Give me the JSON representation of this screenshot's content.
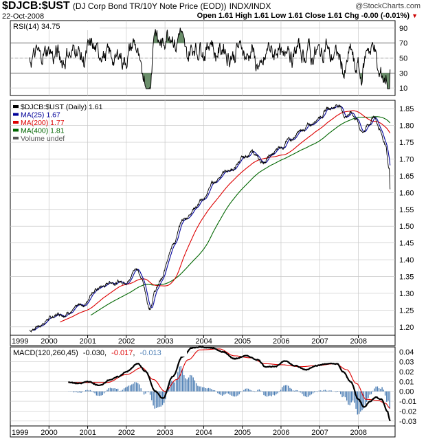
{
  "header": {
    "symbol": "$DJCB:$UST",
    "description": "(DJ Corp Bond TR/10Y Note Price (EOD))",
    "exchange": "INDX/INDX",
    "date": "22-Oct-2008",
    "watermark": "@StockCharts.com",
    "quote": "Open 1.61  High 1.61  Low 1.61  Close 1.61  Chg -0.00 (-0.01%)",
    "down_marker": "▼"
  },
  "colors": {
    "price": "#000000",
    "ma25": "#000099",
    "ma200": "#dd0000",
    "ma400": "#006600",
    "macd": "#000000",
    "signal": "#dd0000",
    "histogram": "#4b7db4",
    "rsi_fill": "#6b8f6b",
    "grid": "#c8c8c8"
  },
  "chart_data": [
    {
      "type": "line",
      "panel": "rsi",
      "legend": "RSI(14) 34.75",
      "y_ticks": [
        "90",
        "70",
        "50",
        "30",
        "10"
      ],
      "ylim": [
        0,
        100
      ],
      "overbought": 70,
      "oversold": 30,
      "series": [
        {
          "name": "RSI(14)",
          "last": 34.75
        }
      ]
    },
    {
      "type": "line",
      "panel": "price",
      "legend": [
        {
          "text": "$DJCB:$UST (Daily) 1.61",
          "color": "#000000"
        },
        {
          "text": "MA(25) 1.67",
          "color": "#000099"
        },
        {
          "text": "MA(200) 1.77",
          "color": "#dd0000"
        },
        {
          "text": "MA(400) 1.81",
          "color": "#006600"
        },
        {
          "text": "Volume undef",
          "color": "#555555"
        }
      ],
      "y_ticks": [
        "1.85",
        "1.80",
        "1.75",
        "1.70",
        "1.65",
        "1.60",
        "1.55",
        "1.50",
        "1.45",
        "1.40",
        "1.35",
        "1.30",
        "1.25",
        "1.20"
      ],
      "ylim": [
        1.175,
        1.875
      ],
      "x_ticks": [
        "1999",
        "2000",
        "2001",
        "2002",
        "2003",
        "2004",
        "2005",
        "2006",
        "2007",
        "2008"
      ],
      "price_keypoints": [
        [
          1999.5,
          1.19
        ],
        [
          1999.75,
          1.205
        ],
        [
          2000.0,
          1.225
        ],
        [
          2000.3,
          1.24
        ],
        [
          2000.6,
          1.25
        ],
        [
          2000.9,
          1.265
        ],
        [
          2001.15,
          1.31
        ],
        [
          2001.4,
          1.32
        ],
        [
          2001.6,
          1.335
        ],
        [
          2001.85,
          1.335
        ],
        [
          2002.05,
          1.34
        ],
        [
          2002.25,
          1.38
        ],
        [
          2002.4,
          1.34
        ],
        [
          2002.6,
          1.26
        ],
        [
          2002.75,
          1.31
        ],
        [
          2002.9,
          1.34
        ],
        [
          2003.2,
          1.45
        ],
        [
          2003.5,
          1.52
        ],
        [
          2003.8,
          1.56
        ],
        [
          2004.0,
          1.58
        ],
        [
          2004.25,
          1.63
        ],
        [
          2004.5,
          1.66
        ],
        [
          2004.75,
          1.67
        ],
        [
          2005.0,
          1.7
        ],
        [
          2005.25,
          1.72
        ],
        [
          2005.5,
          1.69
        ],
        [
          2005.75,
          1.71
        ],
        [
          2006.0,
          1.74
        ],
        [
          2006.25,
          1.76
        ],
        [
          2006.5,
          1.78
        ],
        [
          2006.75,
          1.8
        ],
        [
          2007.0,
          1.83
        ],
        [
          2007.25,
          1.855
        ],
        [
          2007.5,
          1.862
        ],
        [
          2007.65,
          1.83
        ],
        [
          2007.8,
          1.84
        ],
        [
          2007.95,
          1.82
        ],
        [
          2008.1,
          1.78
        ],
        [
          2008.25,
          1.8
        ],
        [
          2008.4,
          1.83
        ],
        [
          2008.55,
          1.79
        ],
        [
          2008.7,
          1.75
        ],
        [
          2008.8,
          1.67
        ],
        [
          2008.82,
          1.61
        ]
      ],
      "series": [
        {
          "name": "$DJCB:$UST (Daily)",
          "last": 1.61
        },
        {
          "name": "MA(25)",
          "last": 1.67
        },
        {
          "name": "MA(200)",
          "last": 1.77
        },
        {
          "name": "MA(400)",
          "last": 1.81
        }
      ]
    },
    {
      "type": "line",
      "panel": "macd",
      "legend": {
        "label": "MACD(120,260,45)",
        "macd": "-0.030",
        "signal": "-0.017",
        "histogram": "-0.013"
      },
      "y_ticks": [
        "0.04",
        "0.03",
        "0.02",
        "0.01",
        "0.00",
        "-0.01",
        "-0.02",
        "-0.03"
      ],
      "ylim": [
        -0.035,
        0.045
      ],
      "x_ticks": [
        "1999",
        "2000",
        "2001",
        "2002",
        "2003",
        "2004",
        "2005",
        "2006",
        "2007",
        "2008"
      ],
      "macd_keypoints": [
        [
          2000.5,
          0.009
        ],
        [
          2000.8,
          0.008
        ],
        [
          2001.0,
          0.01
        ],
        [
          2001.3,
          0.006
        ],
        [
          2001.6,
          0.012
        ],
        [
          2001.8,
          0.015
        ],
        [
          2002.0,
          0.02
        ],
        [
          2002.3,
          0.028
        ],
        [
          2002.5,
          0.02
        ],
        [
          2002.75,
          0.0
        ],
        [
          2002.95,
          -0.007
        ],
        [
          2003.2,
          0.015
        ],
        [
          2003.45,
          0.035
        ],
        [
          2003.7,
          0.044
        ],
        [
          2003.9,
          0.045
        ],
        [
          2004.2,
          0.044
        ],
        [
          2004.5,
          0.04
        ],
        [
          2004.8,
          0.033
        ],
        [
          2005.1,
          0.036
        ],
        [
          2005.4,
          0.032
        ],
        [
          2005.6,
          0.025
        ],
        [
          2005.85,
          0.025
        ],
        [
          2006.1,
          0.031
        ],
        [
          2006.35,
          0.026
        ],
        [
          2006.65,
          0.022
        ],
        [
          2006.9,
          0.026
        ],
        [
          2007.2,
          0.028
        ],
        [
          2007.45,
          0.028
        ],
        [
          2007.6,
          0.02
        ],
        [
          2007.8,
          0.01
        ],
        [
          2008.0,
          -0.008
        ],
        [
          2008.15,
          -0.016
        ],
        [
          2008.3,
          -0.01
        ],
        [
          2008.45,
          -0.006
        ],
        [
          2008.6,
          -0.008
        ],
        [
          2008.75,
          -0.02
        ],
        [
          2008.82,
          -0.03
        ]
      ],
      "signal_keypoints": [
        [
          2000.5,
          0.009
        ],
        [
          2001.0,
          0.009
        ],
        [
          2001.5,
          0.009
        ],
        [
          2002.0,
          0.017
        ],
        [
          2002.4,
          0.024
        ],
        [
          2002.7,
          0.012
        ],
        [
          2003.0,
          0.0
        ],
        [
          2003.3,
          0.012
        ],
        [
          2003.6,
          0.032
        ],
        [
          2003.9,
          0.042
        ],
        [
          2004.4,
          0.043
        ],
        [
          2004.8,
          0.036
        ],
        [
          2005.2,
          0.034
        ],
        [
          2005.6,
          0.028
        ],
        [
          2006.0,
          0.027
        ],
        [
          2006.5,
          0.025
        ],
        [
          2006.9,
          0.026
        ],
        [
          2007.4,
          0.028
        ],
        [
          2007.7,
          0.022
        ],
        [
          2007.95,
          0.008
        ],
        [
          2008.2,
          -0.008
        ],
        [
          2008.5,
          -0.009
        ],
        [
          2008.7,
          -0.012
        ],
        [
          2008.82,
          -0.017
        ]
      ],
      "series": [
        {
          "name": "MACD(120,260,45)",
          "last": -0.03
        },
        {
          "name": "Signal",
          "last": -0.017
        },
        {
          "name": "Histogram",
          "last": -0.013
        }
      ]
    }
  ]
}
